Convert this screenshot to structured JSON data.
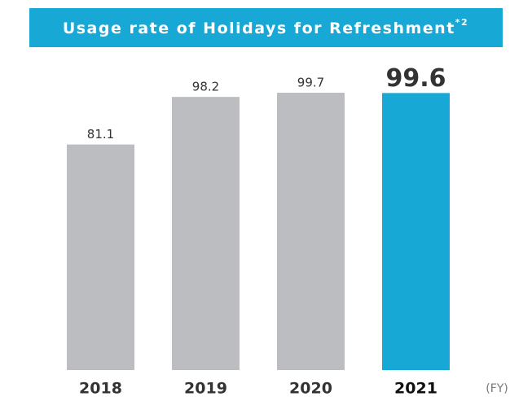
{
  "chart_data": {
    "type": "bar",
    "title": "Usage rate of Holidays for Refreshment",
    "title_note": "*2",
    "x_label": "(FY)",
    "categories": [
      "2018",
      "2019",
      "2020",
      "2021"
    ],
    "values": [
      81.1,
      98.2,
      99.7,
      99.6
    ],
    "colors": [
      "#bcbdc1",
      "#bcbdc1",
      "#bcbdc1",
      "#17a8d6"
    ],
    "ylim": [
      0,
      100
    ]
  }
}
